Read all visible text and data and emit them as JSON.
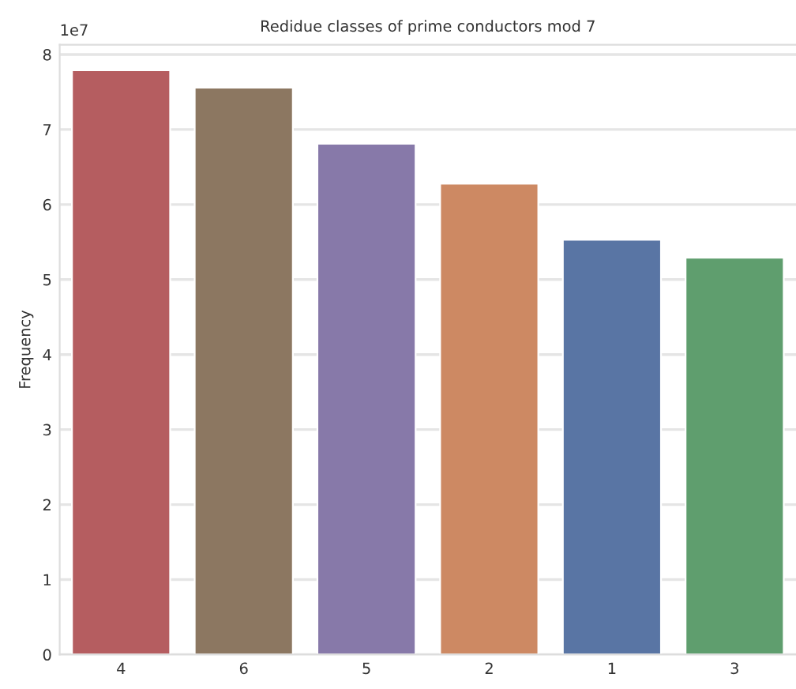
{
  "chart_data": {
    "type": "bar",
    "title": "Redidue classes of prime conductors mod 7",
    "ylabel": "Frequency",
    "categories": [
      "4",
      "6",
      "5",
      "2",
      "1",
      "3"
    ],
    "values": [
      7.79,
      7.56,
      6.81,
      6.28,
      5.53,
      5.29
    ],
    "colors": [
      "#b55d60",
      "#8c7761",
      "#8779a9",
      "#cd8963",
      "#5975a4",
      "#5f9e6e"
    ],
    "ylim": [
      0,
      8.13
    ],
    "yticks": [
      0,
      1,
      2,
      3,
      4,
      5,
      6,
      7,
      8
    ],
    "grid": "y",
    "annotations": [
      "1e7"
    ]
  }
}
